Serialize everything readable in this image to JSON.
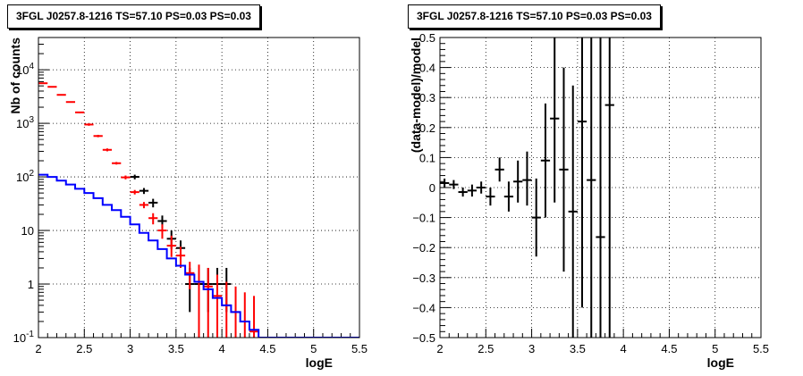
{
  "chart_data": [
    {
      "type": "line",
      "title": "3FGL J0257.8-1216 TS=57.10 PS=0.03 PS=0.03",
      "xlabel": "logE",
      "ylabel": "Nb of counts",
      "xlim": [
        2,
        5.5
      ],
      "ylim": [
        0.1,
        40000
      ],
      "yscale": "log",
      "grid": true,
      "x_ticks": [
        "2",
        "2.5",
        "3",
        "3.5",
        "4",
        "4.5",
        "5",
        "5.5"
      ],
      "y_ticks": [
        {
          "value": 0.1,
          "base": "10",
          "exp": "-1"
        },
        {
          "value": 1,
          "base": "1",
          "exp": ""
        },
        {
          "value": 10,
          "base": "10",
          "exp": ""
        },
        {
          "value": 100,
          "base": "10",
          "exp": "2"
        },
        {
          "value": 1000,
          "base": "10",
          "exp": "3"
        },
        {
          "value": 10000,
          "base": "10",
          "exp": "4"
        }
      ],
      "series": [
        {
          "color": "#000000",
          "style": "errorbar",
          "points": [
            {
              "x": 3.05,
              "y": 100,
              "lo": 90,
              "hi": 110
            },
            {
              "x": 3.15,
              "y": 55,
              "lo": 48,
              "hi": 62
            },
            {
              "x": 3.25,
              "y": 33,
              "lo": 27,
              "hi": 39
            },
            {
              "x": 3.35,
              "y": 15,
              "lo": 11,
              "hi": 19
            },
            {
              "x": 3.45,
              "y": 7,
              "lo": 4.5,
              "hi": 10
            },
            {
              "x": 3.55,
              "y": 4.7,
              "lo": 2.7,
              "hi": 6.5
            },
            {
              "x": 3.65,
              "y": 1,
              "lo": 0.3,
              "hi": 2
            },
            {
              "x": 3.75,
              "y": 1,
              "lo": 0.3,
              "hi": 2
            },
            {
              "x": 3.85,
              "y": 1,
              "lo": 0.3,
              "hi": 2
            },
            {
              "x": 3.95,
              "y": 1,
              "lo": 0.3,
              "hi": 2
            },
            {
              "x": 4.05,
              "y": 1,
              "lo": 0.3,
              "hi": 2
            }
          ]
        },
        {
          "color": "#ff0000",
          "style": "errorbar",
          "points": [
            {
              "x": 2.05,
              "y": 5600,
              "lo": 5500,
              "hi": 5700
            },
            {
              "x": 2.15,
              "y": 4800,
              "lo": 4700,
              "hi": 4900
            },
            {
              "x": 2.25,
              "y": 3400,
              "lo": 3300,
              "hi": 3500
            },
            {
              "x": 2.35,
              "y": 2500,
              "lo": 2450,
              "hi": 2550
            },
            {
              "x": 2.45,
              "y": 1600,
              "lo": 1550,
              "hi": 1650
            },
            {
              "x": 2.55,
              "y": 950,
              "lo": 900,
              "hi": 1000
            },
            {
              "x": 2.65,
              "y": 580,
              "lo": 550,
              "hi": 610
            },
            {
              "x": 2.75,
              "y": 320,
              "lo": 300,
              "hi": 340
            },
            {
              "x": 2.85,
              "y": 180,
              "lo": 170,
              "hi": 190
            },
            {
              "x": 2.95,
              "y": 98,
              "lo": 90,
              "hi": 106
            },
            {
              "x": 3.05,
              "y": 52,
              "lo": 47,
              "hi": 57
            },
            {
              "x": 3.15,
              "y": 30,
              "lo": 26,
              "hi": 34
            },
            {
              "x": 3.25,
              "y": 17,
              "lo": 13,
              "hi": 21
            },
            {
              "x": 3.35,
              "y": 10,
              "lo": 7,
              "hi": 13
            },
            {
              "x": 3.45,
              "y": 5.2,
              "lo": 3.2,
              "hi": 8
            },
            {
              "x": 3.55,
              "y": 3.4,
              "lo": 2,
              "hi": 5
            },
            {
              "x": 3.65,
              "y": 1.6,
              "lo": 0.8,
              "hi": 2.6
            },
            {
              "x": 3.75,
              "y": 1.1,
              "lo": 0.1,
              "hi": 2.3
            },
            {
              "x": 3.85,
              "y": 0.9,
              "lo": 0.1,
              "hi": 2
            },
            {
              "x": 3.95,
              "y": 0.6,
              "lo": 0.1,
              "hi": 1.5
            },
            {
              "x": 4.05,
              "y": 0.4,
              "lo": 0.1,
              "hi": 1.1
            },
            {
              "x": 4.15,
              "y": 0.3,
              "lo": 0.1,
              "hi": 0.9
            },
            {
              "x": 4.25,
              "y": 0.2,
              "lo": 0.1,
              "hi": 0.7
            },
            {
              "x": 4.35,
              "y": 0.13,
              "lo": 0.1,
              "hi": 0.6
            }
          ]
        },
        {
          "color": "#0000ff",
          "style": "step",
          "bin_width": 0.1,
          "edges_start": 2.0,
          "values": [
            110,
            100,
            85,
            72,
            60,
            50,
            40,
            30,
            24,
            18,
            13,
            9,
            6.5,
            4.5,
            3,
            2.2,
            1.5,
            1.1,
            0.8,
            0.55,
            0.4,
            0.3,
            0.2,
            0.14,
            0.1,
            0.1,
            0.1,
            0.1,
            0.1,
            0.1,
            0.1,
            0.1,
            0.1,
            0.1,
            0.1
          ]
        }
      ]
    },
    {
      "type": "scatter",
      "title": "3FGL J0257.8-1216 TS=57.10 PS=0.03 PS=0.03",
      "xlabel": "logE",
      "ylabel": "(data-model)/model",
      "xlim": [
        2,
        5.5
      ],
      "ylim": [
        -0.5,
        0.5
      ],
      "grid": true,
      "x_ticks": [
        "2",
        "2.5",
        "3",
        "3.5",
        "4",
        "4.5",
        "5",
        "5.5"
      ],
      "y_ticks": [
        "−0.5",
        "−0.4",
        "−0.3",
        "−0.2",
        "−0.1",
        "0",
        "0.1",
        "0.2",
        "0.3",
        "0.4",
        "0.5"
      ],
      "y_tick_values": [
        -0.5,
        -0.4,
        -0.3,
        -0.2,
        -0.1,
        0,
        0.1,
        0.2,
        0.3,
        0.4,
        0.5
      ],
      "series": [
        {
          "color": "#000000",
          "style": "errorbar",
          "points": [
            {
              "x": 2.05,
              "y": 0.015,
              "lo": 0.0,
              "hi": 0.03
            },
            {
              "x": 2.15,
              "y": 0.01,
              "lo": -0.005,
              "hi": 0.025
            },
            {
              "x": 2.25,
              "y": -0.015,
              "lo": -0.03,
              "hi": 0.0
            },
            {
              "x": 2.35,
              "y": -0.01,
              "lo": -0.03,
              "hi": 0.01
            },
            {
              "x": 2.45,
              "y": 0.0,
              "lo": -0.02,
              "hi": 0.02
            },
            {
              "x": 2.55,
              "y": -0.03,
              "lo": -0.06,
              "hi": 0.0
            },
            {
              "x": 2.65,
              "y": 0.06,
              "lo": 0.02,
              "hi": 0.1
            },
            {
              "x": 2.75,
              "y": -0.03,
              "lo": -0.08,
              "hi": 0.02
            },
            {
              "x": 2.85,
              "y": 0.02,
              "lo": -0.05,
              "hi": 0.09
            },
            {
              "x": 2.95,
              "y": 0.025,
              "lo": -0.06,
              "hi": 0.12
            },
            {
              "x": 3.05,
              "y": -0.1,
              "lo": -0.23,
              "hi": 0.03
            },
            {
              "x": 3.15,
              "y": 0.09,
              "lo": -0.1,
              "hi": 0.28
            },
            {
              "x": 3.25,
              "y": 0.23,
              "lo": -0.05,
              "hi": 0.5
            },
            {
              "x": 3.35,
              "y": 0.06,
              "lo": -0.28,
              "hi": 0.4
            },
            {
              "x": 3.45,
              "y": -0.08,
              "lo": -0.5,
              "hi": 0.34
            },
            {
              "x": 3.55,
              "y": 0.22,
              "lo": -0.4,
              "hi": 0.5
            },
            {
              "x": 3.65,
              "y": 0.025,
              "lo": -0.5,
              "hi": 0.5
            },
            {
              "x": 3.75,
              "y": -0.165,
              "lo": -0.5,
              "hi": 0.5
            },
            {
              "x": 3.85,
              "y": 0.275,
              "lo": -0.5,
              "hi": 0.5
            }
          ]
        }
      ]
    }
  ]
}
